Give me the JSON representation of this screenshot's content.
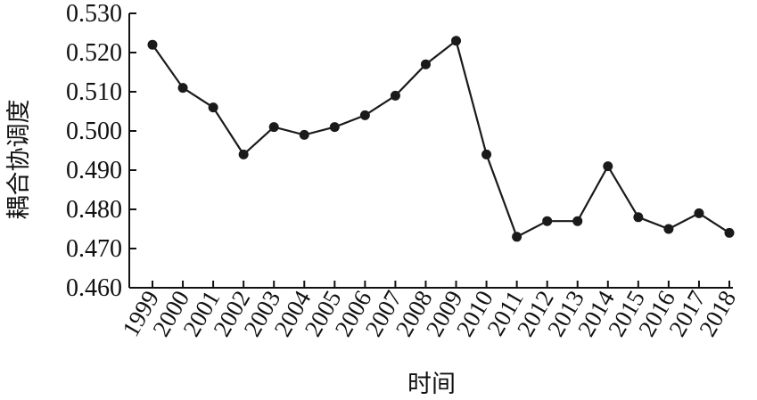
{
  "chart_data": {
    "type": "line",
    "title": "",
    "xlabel": "时间",
    "ylabel": "耦合协调度",
    "ylim": [
      0.46,
      0.53
    ],
    "yticks": [
      "0.460",
      "0.470",
      "0.480",
      "0.490",
      "0.500",
      "0.510",
      "0.520",
      "0.530"
    ],
    "ytick_values": [
      0.46,
      0.47,
      0.48,
      0.49,
      0.5,
      0.51,
      0.52,
      0.53
    ],
    "x": [
      "1999",
      "2000",
      "2001",
      "2002",
      "2003",
      "2004",
      "2005",
      "2006",
      "2007",
      "2008",
      "2009",
      "2010",
      "2011",
      "2012",
      "2013",
      "2014",
      "2015",
      "2016",
      "2017",
      "2018"
    ],
    "values": [
      0.522,
      0.511,
      0.506,
      0.494,
      0.501,
      0.499,
      0.501,
      0.504,
      0.509,
      0.517,
      0.523,
      0.494,
      0.473,
      0.477,
      0.477,
      0.491,
      0.478,
      0.475,
      0.479,
      0.474
    ],
    "grid": false,
    "line_color": "#1a1a1a",
    "marker_color": "#1a1a1a"
  }
}
